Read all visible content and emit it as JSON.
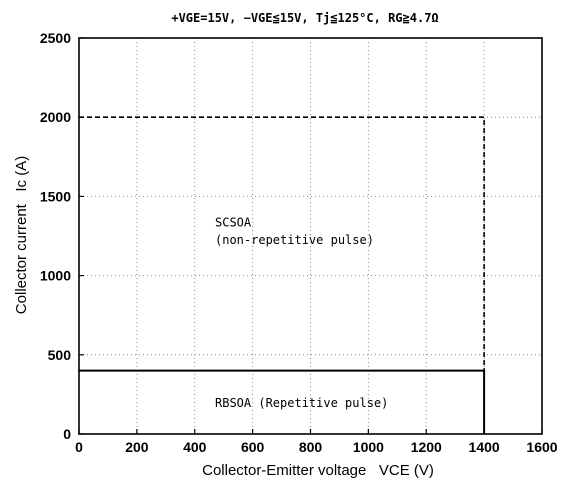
{
  "chart_data": {
    "type": "line",
    "title": "+VGE=15V, −VGE≦15V, Tj≦125°C, RG≧4.7Ω",
    "xlabel": "Collector-Emitter voltage   VCE (V)",
    "ylabel": "Collector current   Ic (A)",
    "xlim": [
      0,
      1600
    ],
    "ylim": [
      0,
      2500
    ],
    "xticks": [
      0,
      200,
      400,
      600,
      800,
      1000,
      1200,
      1400,
      1600
    ],
    "yticks": [
      0,
      500,
      1000,
      1500,
      2000,
      2500
    ],
    "grid": true,
    "series": [
      {
        "name": "SCSOA (non-repetitive pulse)",
        "style": "dashed",
        "x": [
          0,
          1400,
          1400
        ],
        "y": [
          2000,
          2000,
          0
        ]
      },
      {
        "name": "RBSOA (Repetitive pulse)",
        "style": "solid",
        "x": [
          0,
          1400,
          1400
        ],
        "y": [
          400,
          400,
          0
        ]
      }
    ],
    "annotations": [
      {
        "text": "SCSOA",
        "x": 470,
        "y": 1310
      },
      {
        "text": "(non-repetitive pulse)",
        "x": 470,
        "y": 1200
      },
      {
        "text": "RBSOA (Repetitive pulse)",
        "x": 470,
        "y": 170
      }
    ]
  }
}
